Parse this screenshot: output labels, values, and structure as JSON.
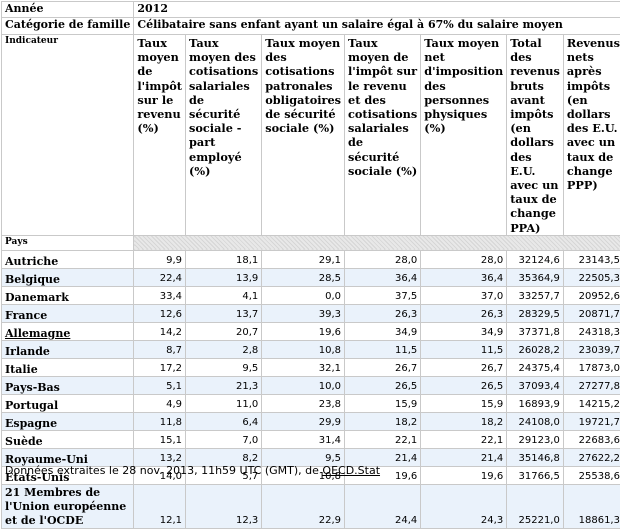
{
  "header": {
    "annee_label": "Année",
    "annee_value": "2012",
    "categorie_label": "Catégorie de famille",
    "categorie_value": "Célibataire sans enfant ayant un salaire égal à  67% du salaire moyen",
    "indicateur_label": "Indicateur",
    "pays_label": "Pays"
  },
  "columns": [
    "Taux moyen de l'impôt sur le revenu (%)",
    "Taux moyen des cotisations salariales de sécurité sociale - part employé (%)",
    "Taux moyen des cotisations patronales obligatoires de sécurité sociale (%)",
    "Taux moyen de l'impôt sur le revenu et des cotisations salariales de sécurité sociale (%)",
    "Taux moyen net d'imposition des personnes physiques (%)",
    "Total des revenus bruts avant impôts (en dollars des E.U. avec un taux de change PPA)",
    "Revenus nets après impôts (en dollars des E.U. avec un taux de change PPP)"
  ],
  "rows": [
    {
      "country": "Autriche",
      "values": [
        "9,9",
        "18,1",
        "29,1",
        "28,0",
        "28,0",
        "32124,6",
        "23143,5"
      ]
    },
    {
      "country": "Belgique",
      "values": [
        "22,4",
        "13,9",
        "28,5",
        "36,4",
        "36,4",
        "35364,9",
        "22505,3"
      ]
    },
    {
      "country": "Danemark",
      "values": [
        "33,4",
        "4,1",
        "0,0",
        "37,5",
        "37,0",
        "33257,7",
        "20952,6"
      ]
    },
    {
      "country": "France",
      "values": [
        "12,6",
        "13,7",
        "39,3",
        "26,3",
        "26,3",
        "28329,5",
        "20871,7"
      ]
    },
    {
      "country": "Allemagne",
      "values": [
        "14,2",
        "20,7",
        "19,6",
        "34,9",
        "34,9",
        "37371,8",
        "24318,3"
      ]
    },
    {
      "country": "Irlande",
      "values": [
        "8,7",
        "2,8",
        "10,8",
        "11,5",
        "11,5",
        "26028,2",
        "23039,7"
      ]
    },
    {
      "country": "Italie",
      "values": [
        "17,2",
        "9,5",
        "32,1",
        "26,7",
        "26,7",
        "24375,4",
        "17873,0"
      ]
    },
    {
      "country": "Pays-Bas",
      "values": [
        "5,1",
        "21,3",
        "10,0",
        "26,5",
        "26,5",
        "37093,4",
        "27277,8"
      ]
    },
    {
      "country": "Portugal",
      "values": [
        "4,9",
        "11,0",
        "23,8",
        "15,9",
        "15,9",
        "16893,9",
        "14215,2"
      ]
    },
    {
      "country": "Espagne",
      "values": [
        "11,8",
        "6,4",
        "29,9",
        "18,2",
        "18,2",
        "24108,0",
        "19721,7"
      ]
    },
    {
      "country": "Suède",
      "values": [
        "15,1",
        "7,0",
        "31,4",
        "22,1",
        "22,1",
        "29123,0",
        "22683,6"
      ]
    },
    {
      "country": "Royaume-Uni",
      "values": [
        "13,2",
        "8,2",
        "9,5",
        "21,4",
        "21,4",
        "35146,8",
        "27622,2"
      ]
    },
    {
      "country": "États-Unis",
      "values": [
        "14,0",
        "5,7",
        "10,8",
        "19,6",
        "19,6",
        "31766,5",
        "25538,6"
      ]
    },
    {
      "country": "21 Membres de l'Union européenne et de l'OCDE",
      "values": [
        "12,1",
        "12,3",
        "22,9",
        "24,4",
        "24,3",
        "25221,0",
        "18861,3"
      ]
    }
  ],
  "footer": {
    "prefix": "Données extraites le 28 nov. 2013, 11h59 UTC (GMT), de ",
    "source_link": "OECD.Stat"
  },
  "colors": {
    "row_alt_bg": "#eaf2fb",
    "grid_line": "#c9c9c9",
    "hatch_bg": "#e8e8e8"
  }
}
